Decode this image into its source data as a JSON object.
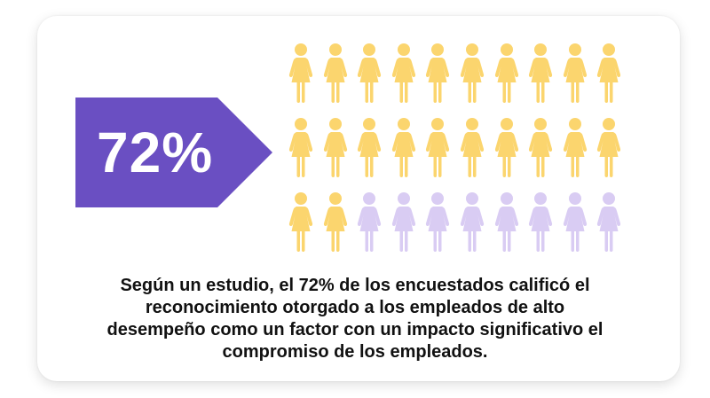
{
  "stat": {
    "percent_label": "72%",
    "value_percent": 72
  },
  "pictogram": {
    "total": 30,
    "highlighted": 22,
    "columns": 10,
    "rows": 3,
    "highlight_color": "#FBD56E",
    "base_color": "#D9CCF3",
    "icon": "female-person-icon"
  },
  "colors": {
    "banner": "#6A4FC2",
    "text": "#111111"
  },
  "caption": "Según un estudio, el 72% de los encuestados calificó el reconocimiento otorgado a los empleados de alto desempeño como un factor con un impacto significativo el compromiso de los empleados."
}
